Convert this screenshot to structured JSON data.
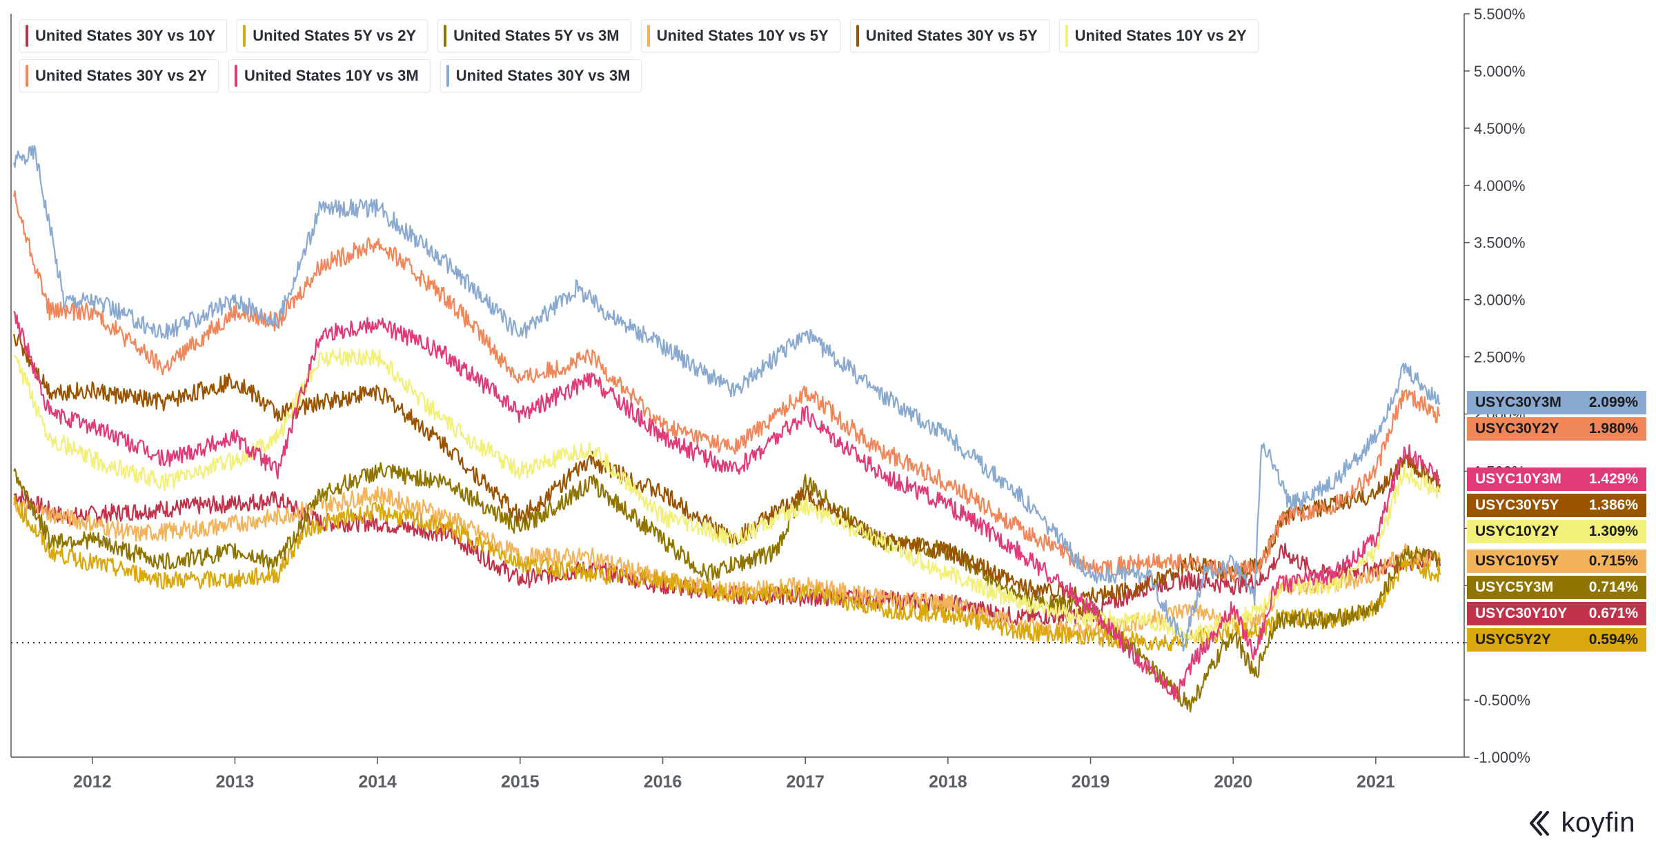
{
  "chart_data": {
    "type": "line",
    "x_ticks": [
      "2012",
      "2013",
      "2014",
      "2015",
      "2016",
      "2017",
      "2018",
      "2019",
      "2020",
      "2021"
    ],
    "y_ticks": [
      "5.500%",
      "5.000%",
      "4.500%",
      "4.000%",
      "3.500%",
      "3.000%",
      "2.500%",
      "2.000%",
      "1.500%",
      "1.000%",
      "0.500%",
      "0.000%",
      "-0.500%",
      "-1.000%"
    ],
    "ylim": [
      -1.0,
      5.5
    ],
    "xlim": [
      2011.43,
      2021.62
    ],
    "zero_line": "dotted",
    "legend_position": "top-left",
    "series": [
      {
        "name": "United States 30Y vs 10Y",
        "tag": "USYC30Y10Y",
        "last": "0.671%",
        "color": "#c1334a",
        "text_color": "#ffffff",
        "x": [
          2011.45,
          2011.8,
          2012.3,
          2012.8,
          2013.3,
          2013.6,
          2014.0,
          2014.5,
          2015.0,
          2015.5,
          2016.0,
          2016.5,
          2017.0,
          2017.5,
          2018.0,
          2018.5,
          2019.0,
          2019.4,
          2019.7,
          2020.0,
          2020.2,
          2020.35,
          2020.6,
          2021.0,
          2021.4,
          2021.45
        ],
        "y": [
          1.3,
          1.1,
          1.15,
          1.2,
          1.25,
          1.05,
          1.05,
          0.95,
          0.55,
          0.65,
          0.5,
          0.42,
          0.4,
          0.38,
          0.35,
          0.22,
          0.25,
          0.5,
          0.55,
          0.5,
          0.55,
          0.8,
          0.6,
          0.65,
          0.75,
          0.671
        ]
      },
      {
        "name": "United States 5Y vs 2Y",
        "tag": "USYC5Y2Y",
        "last": "0.594%",
        "color": "#d9a80c",
        "text_color": "#1b1b1b",
        "x": [
          2011.45,
          2011.7,
          2012.0,
          2012.5,
          2013.0,
          2013.3,
          2013.5,
          2013.8,
          2014.0,
          2014.5,
          2015.0,
          2015.5,
          2016.0,
          2016.5,
          2017.0,
          2017.5,
          2018.0,
          2018.5,
          2019.0,
          2019.5,
          2019.8,
          2020.0,
          2020.2,
          2020.35,
          2020.7,
          2021.0,
          2021.2,
          2021.45
        ],
        "y": [
          1.25,
          0.8,
          0.7,
          0.55,
          0.55,
          0.6,
          1.0,
          1.1,
          1.15,
          1.0,
          0.7,
          0.6,
          0.55,
          0.4,
          0.45,
          0.3,
          0.25,
          0.1,
          0.05,
          0.0,
          0.05,
          0.1,
          0.1,
          0.25,
          0.2,
          0.3,
          0.7,
          0.594
        ]
      },
      {
        "name": "United States 5Y vs 3M",
        "tag": "USYC5Y3M",
        "last": "0.714%",
        "color": "#8f7400",
        "text_color": "#ffffff",
        "x": [
          2011.45,
          2011.7,
          2012.0,
          2012.5,
          2013.0,
          2013.3,
          2013.6,
          2014.0,
          2014.5,
          2015.0,
          2015.5,
          2016.0,
          2016.3,
          2016.8,
          2017.0,
          2017.5,
          2018.0,
          2018.5,
          2019.0,
          2019.4,
          2019.7,
          2020.0,
          2020.15,
          2020.3,
          2020.7,
          2021.0,
          2021.2,
          2021.45
        ],
        "y": [
          1.5,
          0.9,
          0.9,
          0.7,
          0.8,
          0.7,
          1.3,
          1.5,
          1.4,
          1.0,
          1.4,
          0.9,
          0.6,
          0.8,
          1.4,
          0.9,
          0.8,
          0.4,
          0.3,
          -0.2,
          -0.55,
          0.1,
          -0.3,
          0.2,
          0.2,
          0.3,
          0.8,
          0.714
        ]
      },
      {
        "name": "United States 10Y vs 5Y",
        "tag": "USYC10Y5Y",
        "last": "0.715%",
        "color": "#f2b35a",
        "text_color": "#1b1b1b",
        "x": [
          2011.45,
          2011.8,
          2012.3,
          2012.8,
          2013.3,
          2013.6,
          2014.0,
          2014.5,
          2015.0,
          2015.5,
          2016.0,
          2016.5,
          2017.0,
          2017.5,
          2018.0,
          2018.5,
          2019.0,
          2019.4,
          2019.7,
          2020.0,
          2020.2,
          2020.35,
          2020.7,
          2021.0,
          2021.2,
          2021.45
        ],
        "y": [
          1.2,
          1.1,
          0.95,
          1.0,
          1.1,
          1.2,
          1.3,
          1.1,
          0.75,
          0.75,
          0.55,
          0.45,
          0.5,
          0.4,
          0.35,
          0.15,
          0.1,
          0.2,
          0.3,
          0.15,
          0.2,
          0.5,
          0.5,
          0.6,
          0.8,
          0.715
        ]
      },
      {
        "name": "United States 30Y vs 5Y",
        "tag": "USYC30Y5Y",
        "last": "1.386%",
        "color": "#9a5400",
        "text_color": "#ffffff",
        "x": [
          2011.45,
          2011.7,
          2012.0,
          2012.5,
          2013.0,
          2013.3,
          2013.6,
          2014.0,
          2014.5,
          2015.0,
          2015.5,
          2016.0,
          2016.5,
          2017.0,
          2017.5,
          2018.0,
          2018.5,
          2019.0,
          2019.4,
          2019.7,
          2020.0,
          2020.2,
          2020.35,
          2020.7,
          2021.0,
          2021.2,
          2021.45
        ],
        "y": [
          2.7,
          2.2,
          2.2,
          2.1,
          2.3,
          2.0,
          2.1,
          2.2,
          1.7,
          1.1,
          1.6,
          1.3,
          0.9,
          1.3,
          0.9,
          0.8,
          0.5,
          0.4,
          0.5,
          0.7,
          0.6,
          0.7,
          1.1,
          1.2,
          1.3,
          1.6,
          1.386
        ]
      },
      {
        "name": "United States 10Y vs 2Y",
        "tag": "USYC10Y2Y",
        "last": "1.309%",
        "color": "#f2f07a",
        "text_color": "#1b1b1b",
        "x": [
          2011.45,
          2011.7,
          2012.0,
          2012.5,
          2013.0,
          2013.3,
          2013.6,
          2014.0,
          2014.5,
          2015.0,
          2015.5,
          2016.0,
          2016.5,
          2017.0,
          2017.5,
          2018.0,
          2018.5,
          2019.0,
          2019.4,
          2019.7,
          2020.0,
          2020.2,
          2020.35,
          2020.7,
          2021.0,
          2021.2,
          2021.45
        ],
        "y": [
          2.5,
          1.8,
          1.6,
          1.4,
          1.6,
          1.8,
          2.5,
          2.5,
          1.9,
          1.5,
          1.7,
          1.1,
          0.9,
          1.2,
          0.9,
          0.6,
          0.35,
          0.2,
          0.2,
          0.05,
          0.2,
          0.3,
          0.5,
          0.5,
          0.8,
          1.5,
          1.309
        ]
      },
      {
        "name": "United States 30Y vs 2Y",
        "tag": "USYC30Y2Y",
        "last": "1.980%",
        "color": "#f0875a",
        "text_color": "#1b1b1b",
        "x": [
          2011.45,
          2011.7,
          2012.0,
          2012.5,
          2013.0,
          2013.3,
          2013.6,
          2014.0,
          2014.5,
          2015.0,
          2015.5,
          2016.0,
          2016.5,
          2017.0,
          2017.5,
          2018.0,
          2018.5,
          2019.0,
          2019.4,
          2019.7,
          2020.0,
          2020.2,
          2020.35,
          2020.7,
          2021.0,
          2021.2,
          2021.45
        ],
        "y": [
          3.9,
          2.9,
          2.9,
          2.4,
          2.9,
          2.8,
          3.3,
          3.5,
          3.0,
          2.3,
          2.5,
          1.9,
          1.7,
          2.2,
          1.7,
          1.4,
          1.0,
          0.65,
          0.7,
          0.7,
          0.6,
          0.7,
          1.1,
          1.2,
          1.5,
          2.2,
          1.98
        ]
      },
      {
        "name": "United States 10Y vs 3M",
        "tag": "USYC10Y3M",
        "last": "1.429%",
        "color": "#e03a78",
        "text_color": "#ffffff",
        "x": [
          2011.45,
          2011.7,
          2012.0,
          2012.5,
          2013.0,
          2013.3,
          2013.6,
          2014.0,
          2014.5,
          2015.0,
          2015.5,
          2016.0,
          2016.5,
          2017.0,
          2017.5,
          2018.0,
          2018.5,
          2019.0,
          2019.3,
          2019.6,
          2019.7,
          2020.0,
          2020.15,
          2020.3,
          2020.7,
          2021.0,
          2021.2,
          2021.45
        ],
        "y": [
          2.9,
          2.0,
          1.9,
          1.6,
          1.8,
          1.5,
          2.7,
          2.8,
          2.5,
          2.0,
          2.3,
          1.8,
          1.5,
          2.0,
          1.5,
          1.2,
          0.8,
          0.3,
          -0.1,
          -0.45,
          -0.2,
          0.3,
          -0.1,
          0.5,
          0.6,
          0.9,
          1.7,
          1.429
        ]
      },
      {
        "name": "United States 30Y vs 3M",
        "tag": "USYC30Y3M",
        "last": "2.099%",
        "color": "#8aa9d1",
        "text_color": "#1b1b1b",
        "x": [
          2011.45,
          2011.6,
          2011.8,
          2012.0,
          2012.5,
          2013.0,
          2013.3,
          2013.6,
          2014.0,
          2014.5,
          2015.0,
          2015.4,
          2015.7,
          2016.0,
          2016.5,
          2017.0,
          2017.5,
          2018.0,
          2018.5,
          2019.0,
          2019.4,
          2019.65,
          2019.8,
          2020.0,
          2020.15,
          2020.2,
          2020.4,
          2020.7,
          2021.0,
          2021.2,
          2021.45
        ],
        "y": [
          4.2,
          4.3,
          3.0,
          3.0,
          2.7,
          3.0,
          2.8,
          3.8,
          3.8,
          3.3,
          2.7,
          3.1,
          2.8,
          2.6,
          2.2,
          2.7,
          2.2,
          1.8,
          1.3,
          0.6,
          0.6,
          0.0,
          0.6,
          0.7,
          0.4,
          1.8,
          1.2,
          1.4,
          1.8,
          2.4,
          2.099
        ]
      }
    ]
  },
  "brand": {
    "name": "koyfin"
  }
}
